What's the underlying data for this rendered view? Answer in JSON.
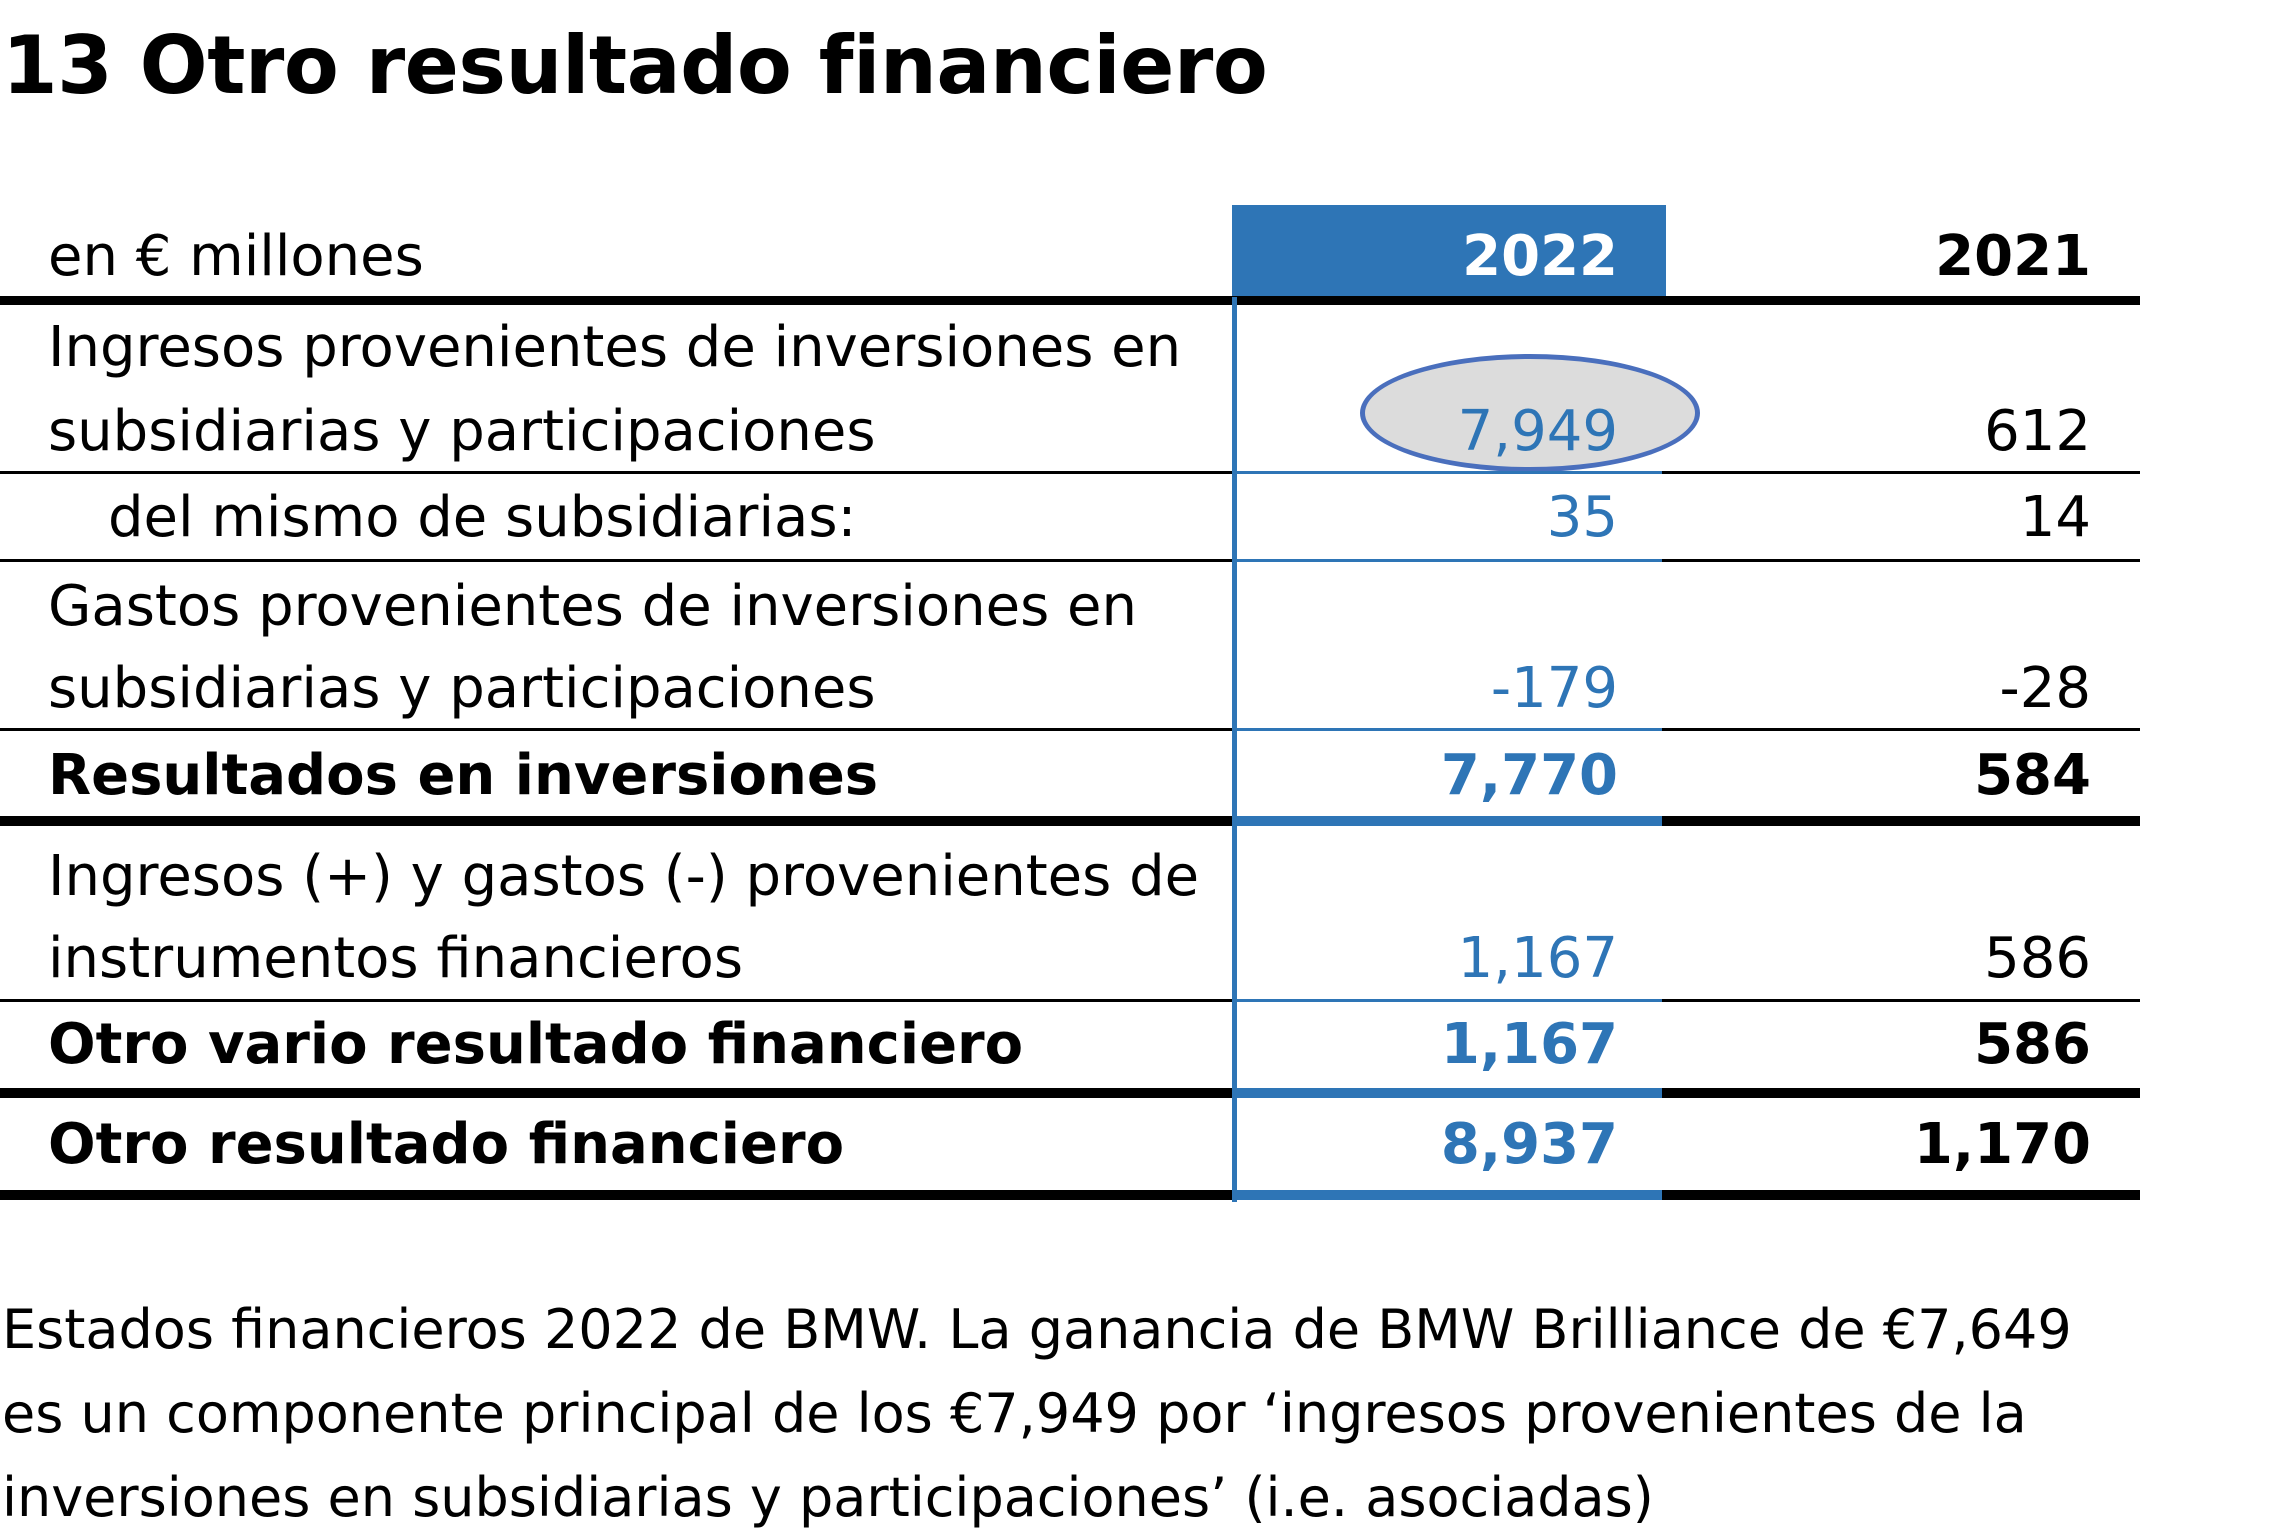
{
  "title": "13 Otro resultado financiero",
  "table": {
    "unit_label": "en € millones",
    "col_2022": "2022",
    "col_2021": "2021",
    "rows": [
      {
        "label_lines": [
          "Ingresos provenientes de inversiones en",
          "subsidiarias y participaciones"
        ],
        "v2022": "7,949",
        "v2021": "612",
        "bold": false,
        "highlighted": true
      },
      {
        "label_lines": [
          "del mismo de subsidiarias:"
        ],
        "v2022": "35",
        "v2021": "14",
        "bold": false,
        "indent": true
      },
      {
        "label_lines": [
          "Gastos provenientes de inversiones en",
          "subsidiarias y participaciones"
        ],
        "v2022": "-179",
        "v2021": "-28",
        "bold": false
      },
      {
        "label_lines": [
          "Resultados en inversiones"
        ],
        "v2022": "7,770",
        "v2021": "584",
        "bold": true
      },
      {
        "label_lines": [
          "Ingresos (+) y gastos (-) provenientes de",
          "instrumentos financieros"
        ],
        "v2022": "1,167",
        "v2021": "586",
        "bold": false
      },
      {
        "label_lines": [
          "Otro vario resultado financiero"
        ],
        "v2022": "1,167",
        "v2021": "586",
        "bold": true
      },
      {
        "label_lines": [
          "Otro resultado financiero"
        ],
        "v2022": "8,937",
        "v2021": "1,170",
        "bold": true
      }
    ]
  },
  "caption_lines": [
    "Estados financieros 2022 de BMW. La ganancia de BMW Brilliance de €7,649",
    "es un componente principal de los €7,949 por ‘ingresos provenientes de la",
    "inversiones en subsidiarias y participaciones’ (i.e. asociadas)"
  ],
  "colors": {
    "accent": "#2e75b6",
    "highlight_ellipse_border": "#4a6fbd",
    "highlight_ellipse_fill": "#dcdcdc"
  }
}
